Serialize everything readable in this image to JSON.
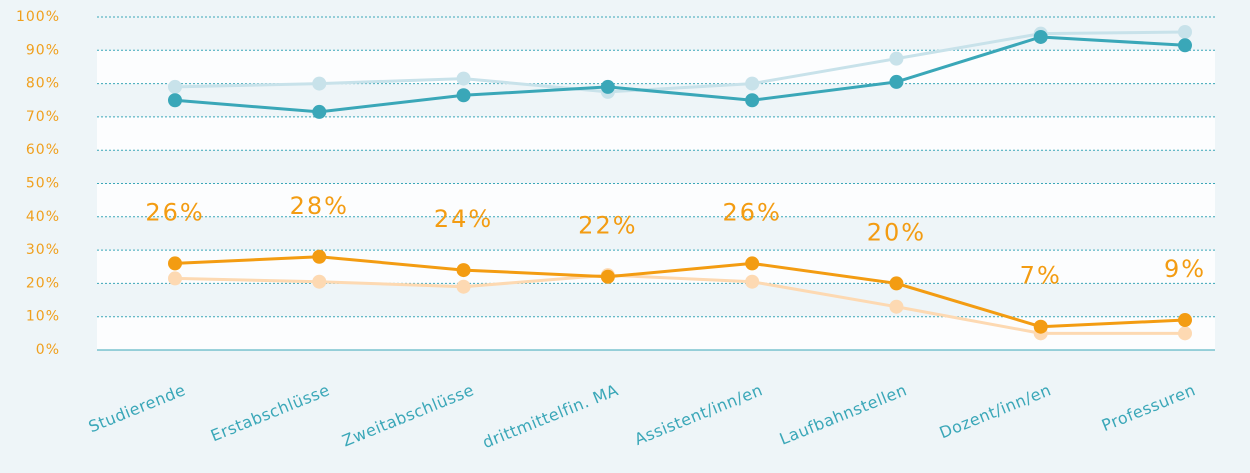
{
  "chart_data": {
    "type": "line",
    "categories": [
      "Studierende",
      "Erstabschlüsse",
      "Zweitabschlüsse",
      "drittmittelfin. MA",
      "Assistent/inn/en",
      "Laufbahnstellen",
      "Dozent/inn/en",
      "Professuren"
    ],
    "series": [
      {
        "color": "#c8e2ea",
        "values": [
          79,
          80,
          81.5,
          77.5,
          80,
          87.5,
          95,
          95.5
        ]
      },
      {
        "color": "#3aa7b8",
        "values": [
          75,
          71.5,
          76.5,
          79,
          75,
          80.5,
          94,
          91.5
        ]
      },
      {
        "color": "#fdd9b2",
        "values": [
          21.5,
          20.5,
          19,
          22.5,
          20.5,
          13,
          5,
          5
        ]
      },
      {
        "color": "#f39c12",
        "values": [
          26,
          28,
          24,
          22,
          26,
          20,
          7,
          9
        ],
        "value_labels": [
          "26%",
          "28%",
          "24%",
          "22%",
          "26%",
          "20%",
          "7%",
          "9%"
        ]
      }
    ],
    "ylim": [
      0,
      100
    ],
    "yticks": [
      {
        "value": 0,
        "label": "0%"
      },
      {
        "value": 10,
        "label": "10%"
      },
      {
        "value": 20,
        "label": "20%"
      },
      {
        "value": 30,
        "label": "30%"
      },
      {
        "value": 40,
        "label": "40%"
      },
      {
        "value": 50,
        "label": "50%"
      },
      {
        "value": 60,
        "label": "60%"
      },
      {
        "value": 70,
        "label": "70%"
      },
      {
        "value": 80,
        "label": "80%"
      },
      {
        "value": 90,
        "label": "90%"
      },
      {
        "value": 100,
        "label": "100%"
      }
    ],
    "grid": true
  }
}
